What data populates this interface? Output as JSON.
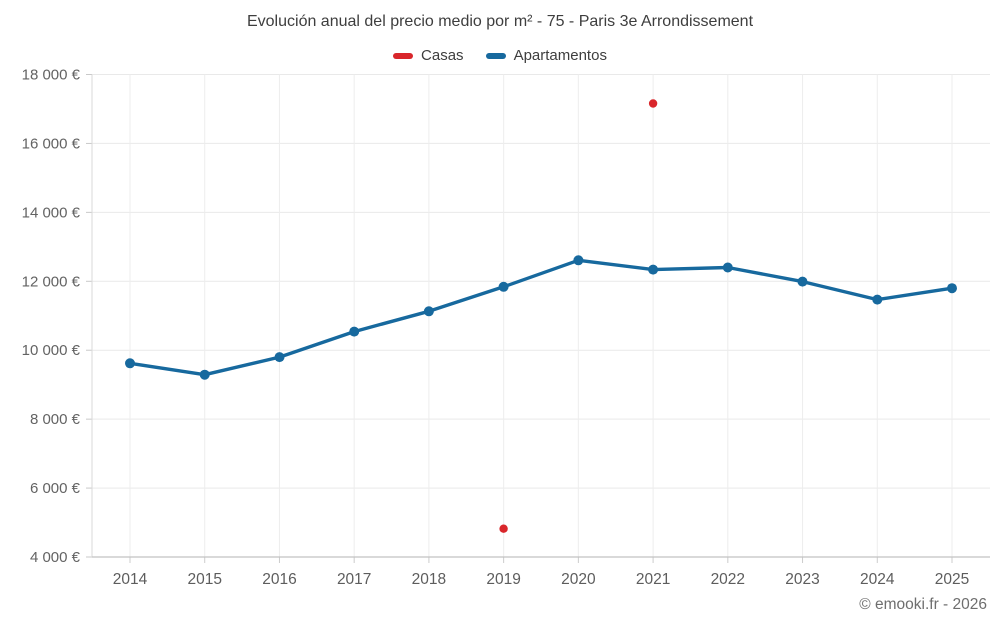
{
  "chart_data": {
    "type": "line",
    "title": "Evolución anual del precio medio por m² - 75 - Paris 3e Arrondissement",
    "categories": [
      "2014",
      "2015",
      "2016",
      "2017",
      "2018",
      "2019",
      "2020",
      "2021",
      "2022",
      "2023",
      "2024",
      "2025"
    ],
    "series": [
      {
        "name": "Casas",
        "color": "#d9262b",
        "type": "points",
        "values": [
          null,
          null,
          null,
          null,
          null,
          4820,
          null,
          17160,
          null,
          null,
          null,
          null
        ]
      },
      {
        "name": "Apartamentos",
        "color": "#17699e",
        "type": "line",
        "values": [
          9620,
          9290,
          9800,
          10540,
          11130,
          11840,
          12610,
          12340,
          12400,
          11990,
          11470,
          11800
        ]
      }
    ],
    "ylabel": "",
    "xlabel": "",
    "ylim": [
      4000,
      18000
    ],
    "ytick_step": 2000,
    "ytick_labels": [
      "4 000 €",
      "6 000 €",
      "8 000 €",
      "10 000 €",
      "12 000 €",
      "14 000 €",
      "16 000 €",
      "18 000 €"
    ],
    "grid": true,
    "legend_position": "top"
  },
  "footer": {
    "credit": "© emooki.fr - 2026"
  }
}
